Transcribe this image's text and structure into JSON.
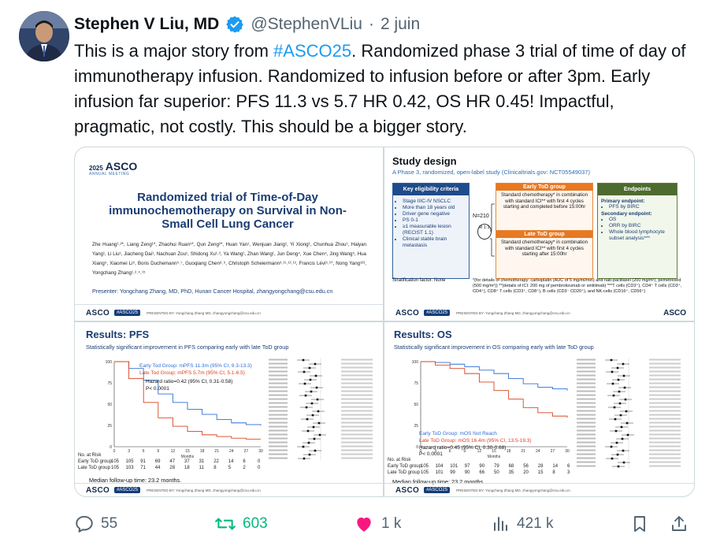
{
  "tweet": {
    "author_name": "Stephen V Liu, MD",
    "handle": "@StephenVLiu",
    "separator": "·",
    "date": "2 juin",
    "text_before": "This is a major story from ",
    "hashtag": "#ASCO25",
    "text_after": ". Randomized phase 3 trial of time of day of immunotherapy infusion. Randomized to infusion before or after 3pm. Early infusion far superior: PFS 11.3 vs 5.7 HR 0.42, OS HR 0.45! Impactful, pragmatic, not costly. This should be a bigger story.",
    "verified_icon": "verified-badge-icon"
  },
  "slide1": {
    "year": "2025",
    "brand": "ASCO",
    "meeting": "ANNUAL MEETING",
    "title": "Randomized trial of Time-of-Day immunochemotherapy on Survival in Non-Small Cell Lung Cancer",
    "authors": "Zhe Huang¹˒²*, Liang Zeng¹*, Zhaohui Ruan¹*, Qun Zeng²*, Huan Yan¹, Wenjuan Jiang¹, Yi Xiong¹, Chunhua Zhou¹, Haiyan Yang¹, Li Liu¹, Jiacheng Dai¹, Nachuan Zou¹, Shidong Xu¹˒², Ya Wang¹, Zhan Wang¹, Jun Deng⁴, Xue Chen⁴, Jing Wang⁵, Hua Xiang⁵, Xiaomei Li⁶, Boris Duchemann⁶˒⁷, Guoqiang Chen⁸˒⁹, Christoph Scheiermann³˒¹¹˒¹²˒¹³, Francis Lévi⁶˒¹⁰, Nong Yang¹²³, Yongchang Zhang¹˒²˒⁴˒¹⁵",
    "presenter": "Presenter: Yongchang Zhang, MD, PhD, Hunan Cancer Hospital, zhangyongchang@csu.edu.cn"
  },
  "slide2": {
    "title": "Study design",
    "subtitle": "A Phase 3, randomized, open-label study (Clinicaltrials.gov: NCT05549037)",
    "eligibility_header": "Key eligibility criteria",
    "eligibility_items": [
      "Stage IIIC-IV NSCLC",
      "More than 18 years old",
      "Driver gene negative",
      "PS 0-1",
      "≥1 measurable lesion (RECIST 1.1)",
      "Clinical stable brain metastasis"
    ],
    "n_label": "N=210",
    "r_label": "R 1:1",
    "early_header": "Early ToD group",
    "early_text": "Standard chemotherapy* in combination with standard ICI** with first 4 cycles starting and completed before 15:00hr",
    "late_header": "Late ToD group",
    "late_text": "Standard chemotherapy* in combination with standard ICI** with first 4 cycles starting after 15:00hr",
    "endpoints_header": "Endpoints",
    "primary_label": "Primary endpoint:",
    "primary_items": [
      "PFS by BIRC"
    ],
    "secondary_label": "Secondary endpoint:",
    "secondary_items": [
      "OS",
      "ORR by BIRC",
      "Whole blood lymphocyte subset analysis***"
    ],
    "stratification": "Stratification factor: None",
    "footnote": "*(for details of chemotherapy: carboplatin (AUC of 5 mg/ml/min) and nab-paclitaxel (200 mg/m²), pemetrexed (500 mg/m²)) **(details of ICI: 200 mg of pembrolizumab or sintilimab) ***T cells (CD3⁺), CD4⁺ T cells (CD3⁺, CD4⁺), CD8⁺ T cells (CD3⁺, CD8⁺), B cells (CD3⁻ CD20⁺), and NK-cells (CD16⁺, CD56⁺)"
  },
  "slide3": {
    "title": "Results: PFS",
    "subtitle": "Statistically significant improvement in PFS comparing early with late ToD group",
    "early_label": "Early Tod Group: mPFS 11.3m (95% CI, 9.3-13.3)",
    "late_label": "Late Tod Group: mPFS 5.7m (95% CI, 5.1-6.5)",
    "hr_label": "Hazard ratio=0.42 (95% CI, 0.31-0.58)",
    "p_label": "P< 0.0001",
    "median": "Median follow-up time: 23.2 months.",
    "at_risk_title": "No. at Risk",
    "early_row_label": "Early ToD group",
    "late_row_label": "Late ToD group",
    "early_risk": [
      "105",
      "105",
      "91",
      "69",
      "47",
      "37",
      "31",
      "22",
      "14",
      "6",
      "0"
    ],
    "late_risk": [
      "105",
      "103",
      "71",
      "44",
      "28",
      "18",
      "11",
      "8",
      "5",
      "2",
      "0"
    ],
    "x_ticks": [
      "0",
      "3",
      "6",
      "9",
      "12",
      "15",
      "18",
      "21",
      "24",
      "27",
      "30"
    ],
    "y_ticks": [
      "100",
      "75",
      "50",
      "25",
      "0"
    ],
    "x_label": "Months"
  },
  "slide4": {
    "title": "Results: OS",
    "subtitle": "Statistically significant improvement in OS comparing early with late ToD group",
    "early_label": "Early ToD Group: mOS Not Reach",
    "late_label": "Late ToD Group: mOS 16.4m (95% CI, 13.5-19.3)",
    "hr_label": "Hazard ratio=0.45 (95% CI, 0.30-0.68)",
    "p_label": "P< 0.0001",
    "median": "Median follow-up time: 23.2 months.",
    "at_risk_title": "No. at Risk",
    "early_row_label": "Early ToD group",
    "late_row_label": "Late ToD group",
    "early_risk": [
      "105",
      "104",
      "101",
      "97",
      "90",
      "79",
      "68",
      "56",
      "28",
      "14",
      "6"
    ],
    "late_risk": [
      "105",
      "101",
      "99",
      "90",
      "66",
      "50",
      "35",
      "20",
      "15",
      "8",
      "3"
    ],
    "x_ticks": [
      "0",
      "3",
      "6",
      "9",
      "12",
      "15",
      "18",
      "21",
      "24",
      "27",
      "30"
    ],
    "y_ticks": [
      "100",
      "75",
      "50",
      "25",
      "0"
    ],
    "x_label": "Months"
  },
  "footer_meta": {
    "presented_by": "PRESENTED BY: Yongchang Zhang MD, zhangyongchang@csu.edu.cn",
    "badge": "#ASCO25",
    "brand": "ASCO",
    "tagline": "AMERICAN SOCIETY OF CLINICAL ONCOLOGY · KNOWLEDGE CONQUERS CANCER"
  },
  "actions": {
    "replies": "55",
    "retweets": "603",
    "likes": "1 k",
    "views": "421 k"
  },
  "colors": {
    "link": "#1d9bf0",
    "muted": "#536471",
    "retweet": "#00ba7c",
    "like": "#f91880",
    "early_curve": "#2f6fd6",
    "late_curve": "#d9431e"
  }
}
